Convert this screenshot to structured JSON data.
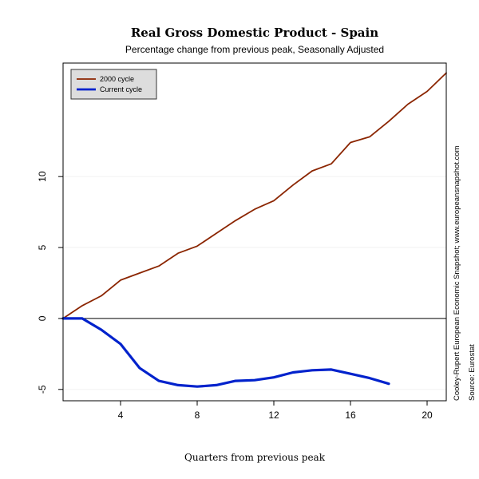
{
  "chart_data": {
    "type": "line",
    "title": "Real Gross Domestic Product - Spain",
    "subtitle": "Percentage change from previous peak, Seasonally Adjusted",
    "xlabel": "Quarters from previous peak",
    "ylabel": "",
    "xlim": [
      1,
      21
    ],
    "ylim": [
      -5.8,
      18.0
    ],
    "x_ticks": [
      4,
      8,
      12,
      16,
      20
    ],
    "y_ticks": [
      -5,
      0,
      5,
      10
    ],
    "zero_line": true,
    "grid": false,
    "legend_position": "top-left",
    "series": [
      {
        "name": "2000 cycle",
        "color": "#8B2500",
        "x": [
          1,
          2,
          3,
          4,
          5,
          6,
          7,
          8,
          9,
          10,
          11,
          12,
          13,
          14,
          15,
          16,
          17,
          18,
          19,
          20,
          21
        ],
        "values": [
          0,
          0.9,
          1.6,
          2.7,
          3.2,
          3.7,
          4.6,
          5.1,
          6.0,
          6.9,
          7.7,
          8.3,
          9.4,
          10.4,
          10.9,
          12.4,
          12.8,
          13.9,
          15.1,
          16.0,
          17.3
        ]
      },
      {
        "name": "Current cycle",
        "color": "#0022CC",
        "x": [
          1,
          2,
          3,
          4,
          5,
          6,
          7,
          8,
          9,
          10,
          11,
          12,
          13,
          14,
          15,
          16,
          17,
          18
        ],
        "values": [
          0,
          0,
          -0.8,
          -1.8,
          -3.5,
          -4.4,
          -4.7,
          -4.8,
          -4.7,
          -4.4,
          -4.35,
          -4.15,
          -3.8,
          -3.65,
          -3.6,
          -3.9,
          -4.2,
          -4.6
        ]
      }
    ]
  },
  "side_note": {
    "line1": "Cooley-Rupert European Economic Snapshot; www.europeansnapshot.com",
    "line2": "Source: Eurostat"
  }
}
